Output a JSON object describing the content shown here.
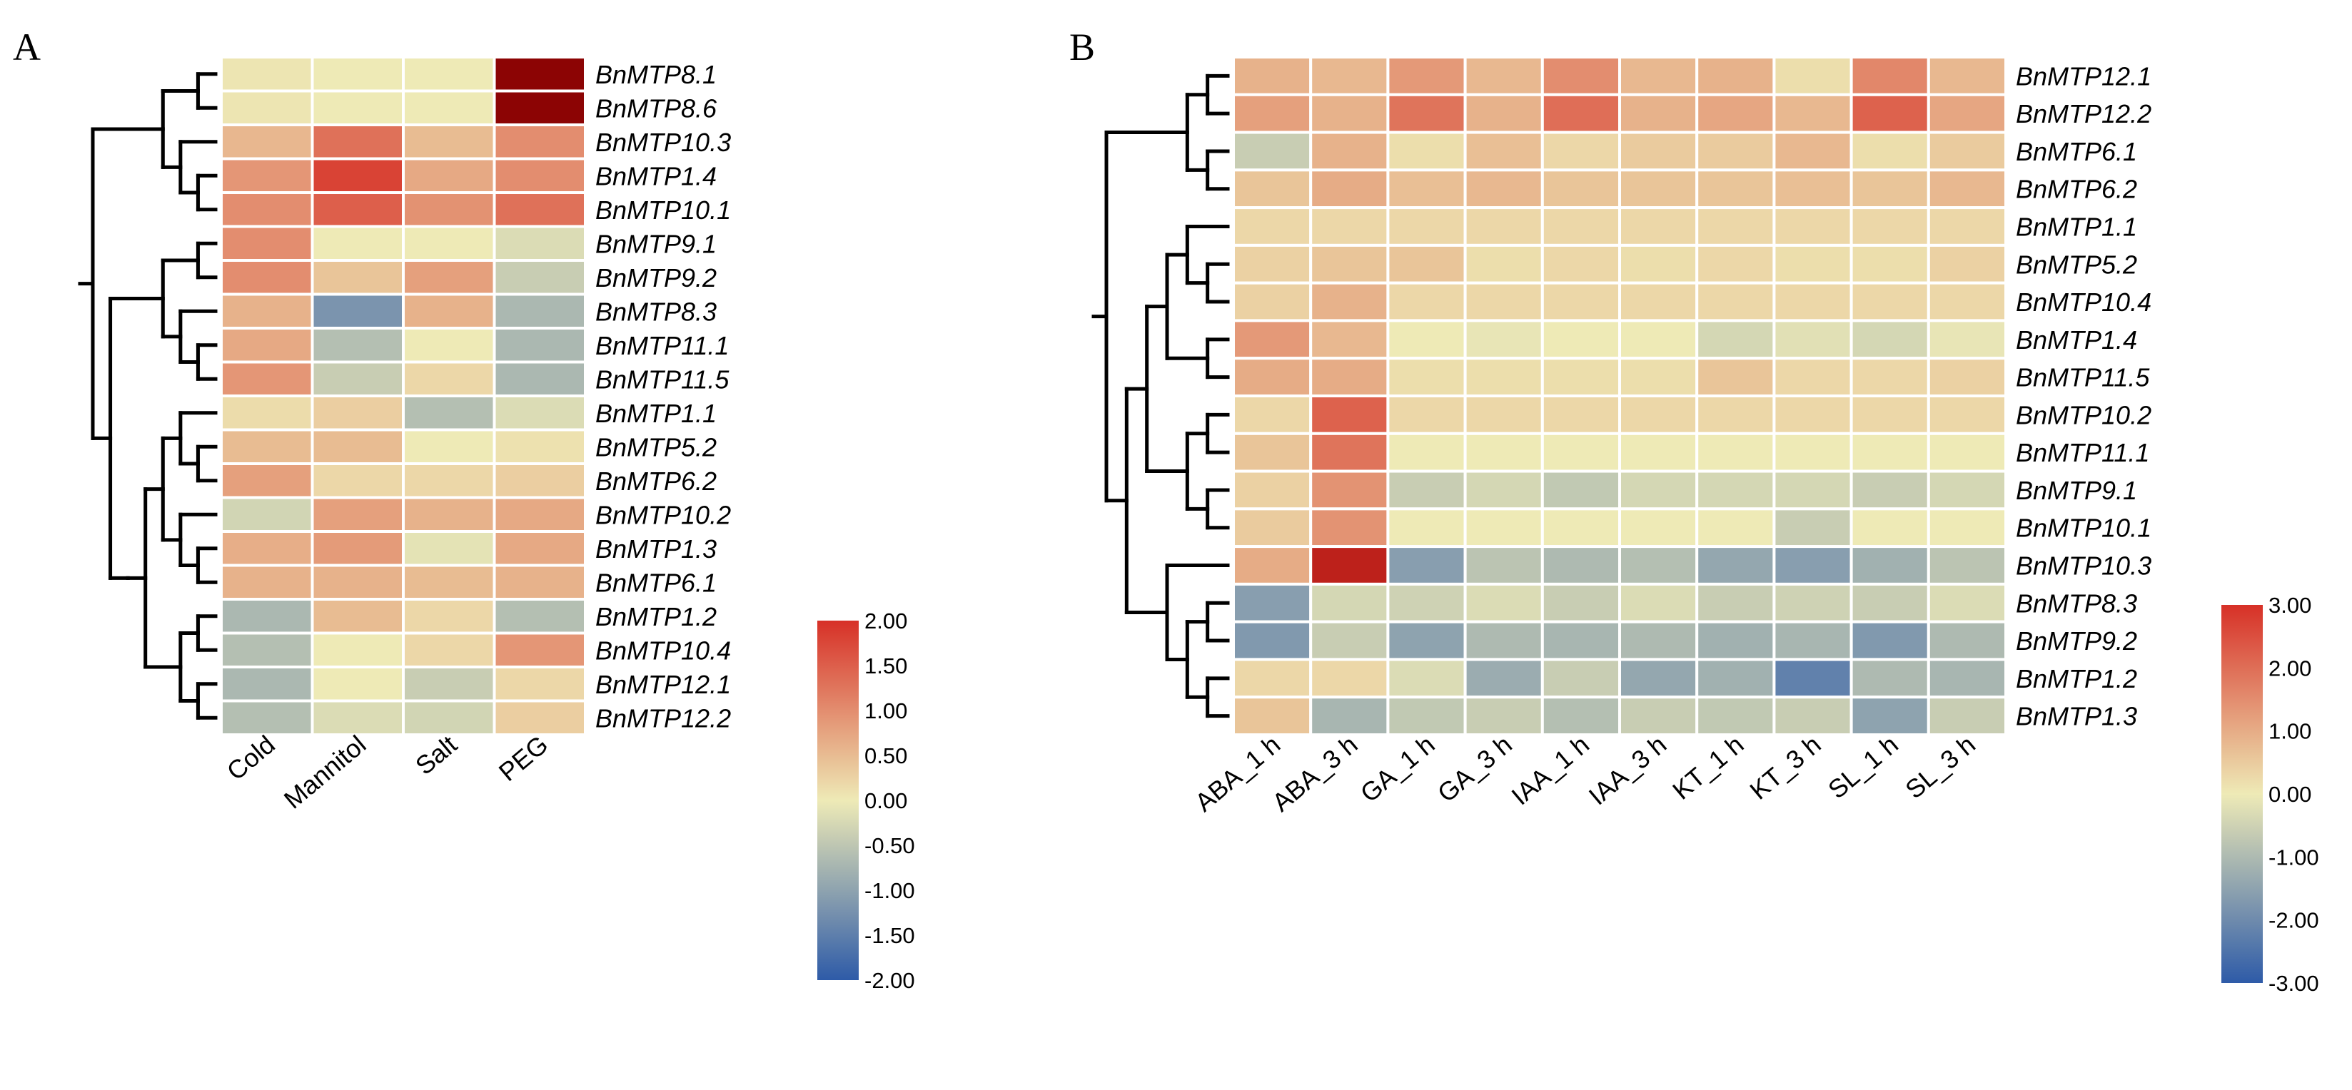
{
  "chart_data": [
    {
      "type": "heatmap",
      "panel_label": "A",
      "rows": [
        "BnMTP8.1",
        "BnMTP8.6",
        "BnMTP10.3",
        "BnMTP1.4",
        "BnMTP10.1",
        "BnMTP9.1",
        "BnMTP9.2",
        "BnMTP8.3",
        "BnMTP11.1",
        "BnMTP11.5",
        "BnMTP1.1",
        "BnMTP5.2",
        "BnMTP6.2",
        "BnMTP10.2",
        "BnMTP1.3",
        "BnMTP6.1",
        "BnMTP1.2",
        "BnMTP10.4",
        "BnMTP12.1",
        "BnMTP12.2"
      ],
      "columns": [
        "Cold",
        "Mannitol",
        "Salt",
        "PEG"
      ],
      "values": [
        [
          0.05,
          0.0,
          0.0,
          3.2
        ],
        [
          0.05,
          0.0,
          0.0,
          3.2
        ],
        [
          0.55,
          1.3,
          0.5,
          1.0
        ],
        [
          0.9,
          1.8,
          0.7,
          1.0
        ],
        [
          1.0,
          1.5,
          0.95,
          1.3
        ],
        [
          1.0,
          0.0,
          0.0,
          -0.2
        ],
        [
          1.0,
          0.4,
          0.8,
          -0.4
        ],
        [
          0.6,
          -1.2,
          0.6,
          -0.7
        ],
        [
          0.7,
          -0.6,
          0.0,
          -0.7
        ],
        [
          0.9,
          -0.4,
          0.2,
          -0.7
        ],
        [
          0.15,
          0.3,
          -0.6,
          -0.2
        ],
        [
          0.5,
          0.5,
          0.0,
          0.1
        ],
        [
          0.8,
          0.2,
          0.2,
          0.3
        ],
        [
          -0.3,
          0.8,
          0.6,
          0.7
        ],
        [
          0.65,
          0.85,
          -0.1,
          0.7
        ],
        [
          0.6,
          0.6,
          0.5,
          0.6
        ],
        [
          -0.7,
          0.5,
          0.2,
          -0.6
        ],
        [
          -0.6,
          0.0,
          0.2,
          0.9
        ],
        [
          -0.7,
          0.0,
          -0.4,
          0.2
        ],
        [
          -0.6,
          -0.2,
          -0.3,
          0.3
        ]
      ],
      "color_scale": {
        "min": -2.0,
        "max": 2.0,
        "ticks": [
          "2.00",
          "1.50",
          "1.00",
          "0.50",
          "0.00",
          "-0.50",
          "-1.00",
          "-1.50",
          "-2.00"
        ],
        "colors": [
          "#2e5ba8",
          "#eeeab6",
          "#d73027"
        ]
      },
      "dendrogram": "(((BnMTP8.1,BnMTP8.6),(BnMTP10.3,(BnMTP1.4,BnMTP10.1))),(((BnMTP9.1,BnMTP9.2),(BnMTP8.3,(BnMTP11.1,BnMTP11.5))),((((BnMTP1.1,(BnMTP5.2,BnMTP6.2)),(BnMTP10.2,(BnMTP1.3,BnMTP6.1))),((BnMTP1.2,BnMTP10.4),(BnMTP12.1,BnMTP12.2))))))"
    },
    {
      "type": "heatmap",
      "panel_label": "B",
      "rows": [
        "BnMTP12.1",
        "BnMTP12.2",
        "BnMTP6.1",
        "BnMTP6.2",
        "BnMTP1.1",
        "BnMTP5.2",
        "BnMTP10.4",
        "BnMTP1.4",
        "BnMTP11.5",
        "BnMTP10.2",
        "BnMTP11.1",
        "BnMTP9.1",
        "BnMTP10.1",
        "BnMTP10.3",
        "BnMTP8.3",
        "BnMTP9.2",
        "BnMTP1.2",
        "BnMTP1.3"
      ],
      "columns": [
        "ABA_1 h",
        "ABA_3 h",
        "GA_1 h",
        "GA_3 h",
        "IAA_1 h",
        "IAA_3 h",
        "KT_1 h",
        "KT_3 h",
        "SL_1 h",
        "SL_3 h"
      ],
      "values": [
        [
          0.9,
          0.8,
          1.3,
          0.8,
          1.5,
          0.8,
          0.9,
          0.2,
          1.6,
          0.8
        ],
        [
          1.2,
          0.9,
          1.9,
          0.9,
          2.0,
          0.9,
          1.1,
          0.8,
          2.2,
          1.1
        ],
        [
          -0.6,
          0.9,
          0.2,
          0.7,
          0.3,
          0.5,
          0.5,
          0.8,
          0.2,
          0.5
        ],
        [
          0.6,
          1.0,
          0.7,
          0.8,
          0.6,
          0.6,
          0.6,
          0.7,
          0.6,
          0.8
        ],
        [
          0.3,
          0.3,
          0.3,
          0.3,
          0.3,
          0.3,
          0.3,
          0.3,
          0.3,
          0.3
        ],
        [
          0.4,
          0.6,
          0.6,
          0.2,
          0.3,
          0.2,
          0.3,
          0.2,
          0.2,
          0.4
        ],
        [
          0.4,
          0.9,
          0.3,
          0.3,
          0.3,
          0.3,
          0.3,
          0.3,
          0.3,
          0.3
        ],
        [
          1.3,
          0.8,
          0.0,
          -0.1,
          0.0,
          0.0,
          -0.4,
          -0.2,
          -0.4,
          -0.1
        ],
        [
          1.0,
          1.0,
          0.2,
          0.2,
          0.2,
          0.2,
          0.6,
          0.3,
          0.3,
          0.4
        ],
        [
          0.3,
          2.2,
          0.3,
          0.3,
          0.3,
          0.3,
          0.3,
          0.3,
          0.3,
          0.3
        ],
        [
          0.6,
          1.9,
          0.0,
          0.0,
          0.0,
          0.0,
          0.0,
          0.0,
          0.0,
          0.0
        ],
        [
          0.4,
          1.4,
          -0.6,
          -0.4,
          -0.7,
          -0.4,
          -0.4,
          -0.4,
          -0.6,
          -0.4
        ],
        [
          0.5,
          1.4,
          0.0,
          0.0,
          0.0,
          0.0,
          0.0,
          -0.6,
          0.0,
          0.0
        ],
        [
          1.0,
          3.0,
          -1.6,
          -0.8,
          -1.0,
          -0.9,
          -1.4,
          -1.6,
          -1.2,
          -0.8
        ],
        [
          -1.6,
          -0.4,
          -0.5,
          -0.3,
          -0.6,
          -0.3,
          -0.6,
          -0.5,
          -0.6,
          -0.3
        ],
        [
          -1.7,
          -0.6,
          -1.5,
          -1.0,
          -1.1,
          -1.0,
          -1.2,
          -1.1,
          -1.7,
          -1.0
        ],
        [
          0.3,
          0.3,
          -0.3,
          -1.3,
          -0.6,
          -1.4,
          -1.2,
          -2.2,
          -1.0,
          -1.1
        ],
        [
          0.6,
          -1.1,
          -0.7,
          -0.6,
          -0.9,
          -0.6,
          -0.7,
          -0.6,
          -1.5,
          -0.6
        ]
      ],
      "color_scale": {
        "min": -3.0,
        "max": 3.0,
        "ticks": [
          "3.00",
          "2.00",
          "1.00",
          "0.00",
          "-1.00",
          "-2.00",
          "-3.00"
        ],
        "colors": [
          "#2e5ba8",
          "#eeeab6",
          "#d73027"
        ]
      },
      "dendrogram": "(((BnMTP12.1,BnMTP12.2),(BnMTP6.1,BnMTP6.2)),((((BnMTP1.1,(BnMTP5.2,BnMTP10.4)),(BnMTP1.4,BnMTP11.5)),((BnMTP10.2,BnMTP11.1),(BnMTP9.1,BnMTP10.1))),(BnMTP10.3,((BnMTP8.3,BnMTP9.2),(BnMTP1.2,BnMTP1.3)))))"
    }
  ]
}
